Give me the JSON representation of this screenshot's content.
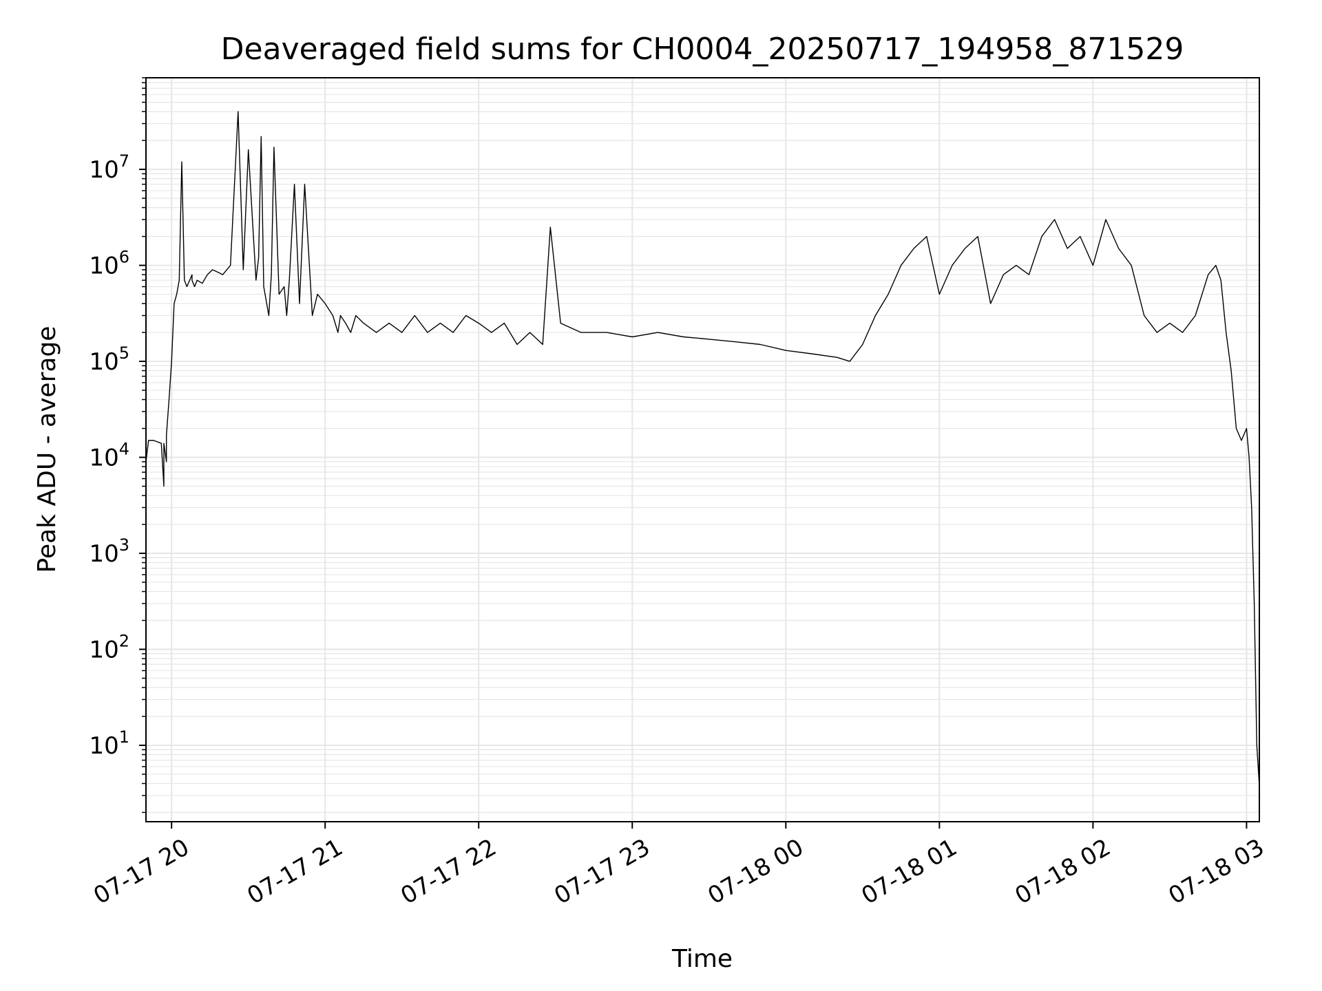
{
  "chart_data": {
    "type": "line",
    "title": "Deaveraged field sums for CH0004_20250717_194958_871529",
    "xlabel": "Time",
    "ylabel": "Peak ADU - average",
    "yscale": "log",
    "grid": true,
    "legend": "none",
    "xlim": [
      "2025-07-17 19:50",
      "2025-07-18 03:05"
    ],
    "ylim": [
      1.6,
      90000000
    ],
    "x_ticks": [
      {
        "value": "2025-07-17 20:00",
        "label": "07-17 20"
      },
      {
        "value": "2025-07-17 21:00",
        "label": "07-17 21"
      },
      {
        "value": "2025-07-17 22:00",
        "label": "07-17 22"
      },
      {
        "value": "2025-07-17 23:00",
        "label": "07-17 23"
      },
      {
        "value": "2025-07-18 00:00",
        "label": "07-18 00"
      },
      {
        "value": "2025-07-18 01:00",
        "label": "07-18 01"
      },
      {
        "value": "2025-07-18 02:00",
        "label": "07-18 02"
      },
      {
        "value": "2025-07-18 03:00",
        "label": "07-18 03"
      }
    ],
    "y_ticks": [
      {
        "value": 10,
        "base": "10",
        "exp": "1"
      },
      {
        "value": 100,
        "base": "10",
        "exp": "2"
      },
      {
        "value": 1000,
        "base": "10",
        "exp": "3"
      },
      {
        "value": 10000,
        "base": "10",
        "exp": "4"
      },
      {
        "value": 100000,
        "base": "10",
        "exp": "5"
      },
      {
        "value": 1000000,
        "base": "10",
        "exp": "6"
      },
      {
        "value": 10000000,
        "base": "10",
        "exp": "7"
      }
    ],
    "line_color": "#000000",
    "grid_color": "#e6e6e6",
    "series": [
      {
        "x": [
          "2025-07-17 19:50",
          "2025-07-17 19:51",
          "2025-07-17 19:53",
          "2025-07-17 19:56",
          "2025-07-17 19:57",
          "2025-07-17 19:57",
          "2025-07-17 19:58",
          "2025-07-17 19:58",
          "2025-07-17 19:59",
          "2025-07-17 20:00",
          "2025-07-17 20:01",
          "2025-07-17 20:02",
          "2025-07-17 20:03",
          "2025-07-17 20:04",
          "2025-07-17 20:05",
          "2025-07-17 20:06",
          "2025-07-17 20:08",
          "2025-07-17 20:08",
          "2025-07-17 20:09",
          "2025-07-17 20:10",
          "2025-07-17 20:12",
          "2025-07-17 20:14",
          "2025-07-17 20:16",
          "2025-07-17 20:18",
          "2025-07-17 20:20",
          "2025-07-17 20:23",
          "2025-07-17 20:26",
          "2025-07-17 20:28",
          "2025-07-17 20:30",
          "2025-07-17 20:33",
          "2025-07-17 20:34",
          "2025-07-17 20:35",
          "2025-07-17 20:36",
          "2025-07-17 20:38",
          "2025-07-17 20:39",
          "2025-07-17 20:40",
          "2025-07-17 20:42",
          "2025-07-17 20:44",
          "2025-07-17 20:45",
          "2025-07-17 20:46",
          "2025-07-17 20:48",
          "2025-07-17 20:50",
          "2025-07-17 20:52",
          "2025-07-17 20:55",
          "2025-07-17 20:57",
          "2025-07-17 21:00",
          "2025-07-17 21:03",
          "2025-07-17 21:05",
          "2025-07-17 21:06",
          "2025-07-17 21:08",
          "2025-07-17 21:10",
          "2025-07-17 21:12",
          "2025-07-17 21:15",
          "2025-07-17 21:20",
          "2025-07-17 21:25",
          "2025-07-17 21:30",
          "2025-07-17 21:35",
          "2025-07-17 21:40",
          "2025-07-17 21:45",
          "2025-07-17 21:50",
          "2025-07-17 21:55",
          "2025-07-17 22:00",
          "2025-07-17 22:05",
          "2025-07-17 22:10",
          "2025-07-17 22:15",
          "2025-07-17 22:20",
          "2025-07-17 22:25",
          "2025-07-17 22:28",
          "2025-07-17 22:32",
          "2025-07-17 22:40",
          "2025-07-17 22:50",
          "2025-07-17 23:00",
          "2025-07-17 23:10",
          "2025-07-17 23:20",
          "2025-07-17 23:30",
          "2025-07-17 23:40",
          "2025-07-17 23:50",
          "2025-07-18 00:00",
          "2025-07-18 00:10",
          "2025-07-18 00:20",
          "2025-07-18 00:25",
          "2025-07-18 00:30",
          "2025-07-18 00:35",
          "2025-07-18 00:40",
          "2025-07-18 00:45",
          "2025-07-18 00:50",
          "2025-07-18 00:55",
          "2025-07-18 01:00",
          "2025-07-18 01:05",
          "2025-07-18 01:10",
          "2025-07-18 01:15",
          "2025-07-18 01:20",
          "2025-07-18 01:25",
          "2025-07-18 01:30",
          "2025-07-18 01:35",
          "2025-07-18 01:40",
          "2025-07-18 01:45",
          "2025-07-18 01:50",
          "2025-07-18 01:55",
          "2025-07-18 02:00",
          "2025-07-18 02:05",
          "2025-07-18 02:10",
          "2025-07-18 02:15",
          "2025-07-18 02:20",
          "2025-07-18 02:25",
          "2025-07-18 02:30",
          "2025-07-18 02:35",
          "2025-07-18 02:40",
          "2025-07-18 02:45",
          "2025-07-18 02:48",
          "2025-07-18 02:50",
          "2025-07-18 02:52",
          "2025-07-18 02:54",
          "2025-07-18 02:56",
          "2025-07-18 02:58",
          "2025-07-18 03:00",
          "2025-07-18 03:01",
          "2025-07-18 03:02",
          "2025-07-18 03:03",
          "2025-07-18 03:04",
          "2025-07-18 03:05"
        ],
        "values": [
          9000,
          15000,
          15000,
          14000,
          5000,
          14000,
          9000,
          17000,
          40000,
          100000,
          400000,
          500000,
          700000,
          12000000,
          700000,
          600000,
          800000,
          700000,
          600000,
          700000,
          650000,
          800000,
          900000,
          850000,
          800000,
          1000000,
          40000000,
          900000,
          16000000,
          700000,
          1200000,
          22000000,
          600000,
          300000,
          800000,
          17000000,
          500000,
          600000,
          300000,
          700000,
          7000000,
          400000,
          7000000,
          300000,
          500000,
          400000,
          300000,
          200000,
          300000,
          250000,
          200000,
          300000,
          250000,
          200000,
          250000,
          200000,
          300000,
          200000,
          250000,
          200000,
          300000,
          250000,
          200000,
          250000,
          150000,
          200000,
          150000,
          2500000,
          250000,
          200000,
          200000,
          180000,
          200000,
          180000,
          170000,
          160000,
          150000,
          130000,
          120000,
          110000,
          100000,
          150000,
          300000,
          500000,
          1000000,
          1500000,
          2000000,
          500000,
          1000000,
          1500000,
          2000000,
          400000,
          800000,
          1000000,
          800000,
          2000000,
          3000000,
          1500000,
          2000000,
          1000000,
          3000000,
          1500000,
          1000000,
          300000,
          200000,
          250000,
          200000,
          300000,
          800000,
          1000000,
          700000,
          200000,
          80000,
          20000,
          15000,
          20000,
          10000,
          3000,
          300,
          10,
          3.8
        ]
      }
    ]
  }
}
